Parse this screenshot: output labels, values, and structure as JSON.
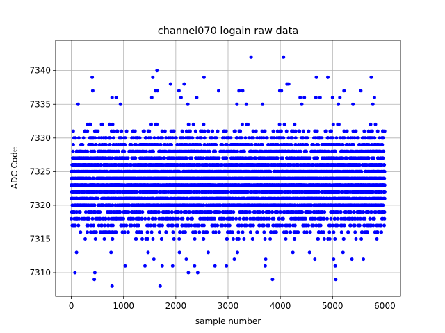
{
  "chart_data": {
    "type": "scatter",
    "title": "channel070 logain raw data",
    "xlabel": "sample number",
    "ylabel": "ADC Code",
    "xlim": [
      -300,
      6300
    ],
    "ylim": [
      7306.5,
      7344.5
    ],
    "xticks": [
      0,
      1000,
      2000,
      3000,
      4000,
      5000,
      6000
    ],
    "yticks": [
      7310,
      7315,
      7320,
      7325,
      7330,
      7335,
      7340
    ],
    "grid": true,
    "legend": "none",
    "marker_color": "#0000ff",
    "n_samples": 6000,
    "core_range": [
      7315,
      7332
    ],
    "outliers": [
      {
        "x": 3440,
        "y": 7342
      },
      {
        "x": 4060,
        "y": 7342
      },
      {
        "x": 1640,
        "y": 7340
      },
      {
        "x": 400,
        "y": 7339
      },
      {
        "x": 1560,
        "y": 7339
      },
      {
        "x": 2540,
        "y": 7339
      },
      {
        "x": 4690,
        "y": 7339
      },
      {
        "x": 4910,
        "y": 7339
      },
      {
        "x": 5740,
        "y": 7339
      },
      {
        "x": 2160,
        "y": 7338
      },
      {
        "x": 1900,
        "y": 7338
      },
      {
        "x": 4130,
        "y": 7338
      },
      {
        "x": 4160,
        "y": 7338
      },
      {
        "x": 410,
        "y": 7337
      },
      {
        "x": 1610,
        "y": 7337
      },
      {
        "x": 1650,
        "y": 7337
      },
      {
        "x": 2060,
        "y": 7337
      },
      {
        "x": 2820,
        "y": 7337
      },
      {
        "x": 3210,
        "y": 7337
      },
      {
        "x": 3280,
        "y": 7337
      },
      {
        "x": 3990,
        "y": 7337
      },
      {
        "x": 4020,
        "y": 7337
      },
      {
        "x": 5220,
        "y": 7337
      },
      {
        "x": 5540,
        "y": 7337
      },
      {
        "x": 780,
        "y": 7336
      },
      {
        "x": 860,
        "y": 7336
      },
      {
        "x": 1540,
        "y": 7336
      },
      {
        "x": 2100,
        "y": 7336
      },
      {
        "x": 2400,
        "y": 7336
      },
      {
        "x": 4380,
        "y": 7336
      },
      {
        "x": 4460,
        "y": 7336
      },
      {
        "x": 4680,
        "y": 7336
      },
      {
        "x": 4760,
        "y": 7336
      },
      {
        "x": 5000,
        "y": 7336
      },
      {
        "x": 5140,
        "y": 7336
      },
      {
        "x": 5800,
        "y": 7336
      },
      {
        "x": 130,
        "y": 7335
      },
      {
        "x": 940,
        "y": 7335
      },
      {
        "x": 2230,
        "y": 7335
      },
      {
        "x": 3170,
        "y": 7335
      },
      {
        "x": 3350,
        "y": 7335
      },
      {
        "x": 3660,
        "y": 7335
      },
      {
        "x": 4410,
        "y": 7335
      },
      {
        "x": 5110,
        "y": 7335
      },
      {
        "x": 5390,
        "y": 7335
      },
      {
        "x": 5770,
        "y": 7335
      },
      {
        "x": 100,
        "y": 7313
      },
      {
        "x": 760,
        "y": 7313
      },
      {
        "x": 1470,
        "y": 7313
      },
      {
        "x": 2070,
        "y": 7313
      },
      {
        "x": 2620,
        "y": 7313
      },
      {
        "x": 3180,
        "y": 7313
      },
      {
        "x": 4240,
        "y": 7313
      },
      {
        "x": 4560,
        "y": 7313
      },
      {
        "x": 5200,
        "y": 7313
      },
      {
        "x": 1580,
        "y": 7312
      },
      {
        "x": 2200,
        "y": 7312
      },
      {
        "x": 3120,
        "y": 7312
      },
      {
        "x": 3720,
        "y": 7312
      },
      {
        "x": 4660,
        "y": 7312
      },
      {
        "x": 5020,
        "y": 7312
      },
      {
        "x": 5370,
        "y": 7312
      },
      {
        "x": 5590,
        "y": 7312
      },
      {
        "x": 1030,
        "y": 7311
      },
      {
        "x": 1410,
        "y": 7311
      },
      {
        "x": 1740,
        "y": 7311
      },
      {
        "x": 1940,
        "y": 7311
      },
      {
        "x": 2360,
        "y": 7311
      },
      {
        "x": 2750,
        "y": 7311
      },
      {
        "x": 2970,
        "y": 7311
      },
      {
        "x": 3710,
        "y": 7311
      },
      {
        "x": 5050,
        "y": 7311
      },
      {
        "x": 70,
        "y": 7310
      },
      {
        "x": 450,
        "y": 7310
      },
      {
        "x": 2240,
        "y": 7310
      },
      {
        "x": 2420,
        "y": 7310
      },
      {
        "x": 440,
        "y": 7309
      },
      {
        "x": 3850,
        "y": 7309
      },
      {
        "x": 5060,
        "y": 7309
      },
      {
        "x": 780,
        "y": 7308
      },
      {
        "x": 1700,
        "y": 7308
      }
    ]
  }
}
